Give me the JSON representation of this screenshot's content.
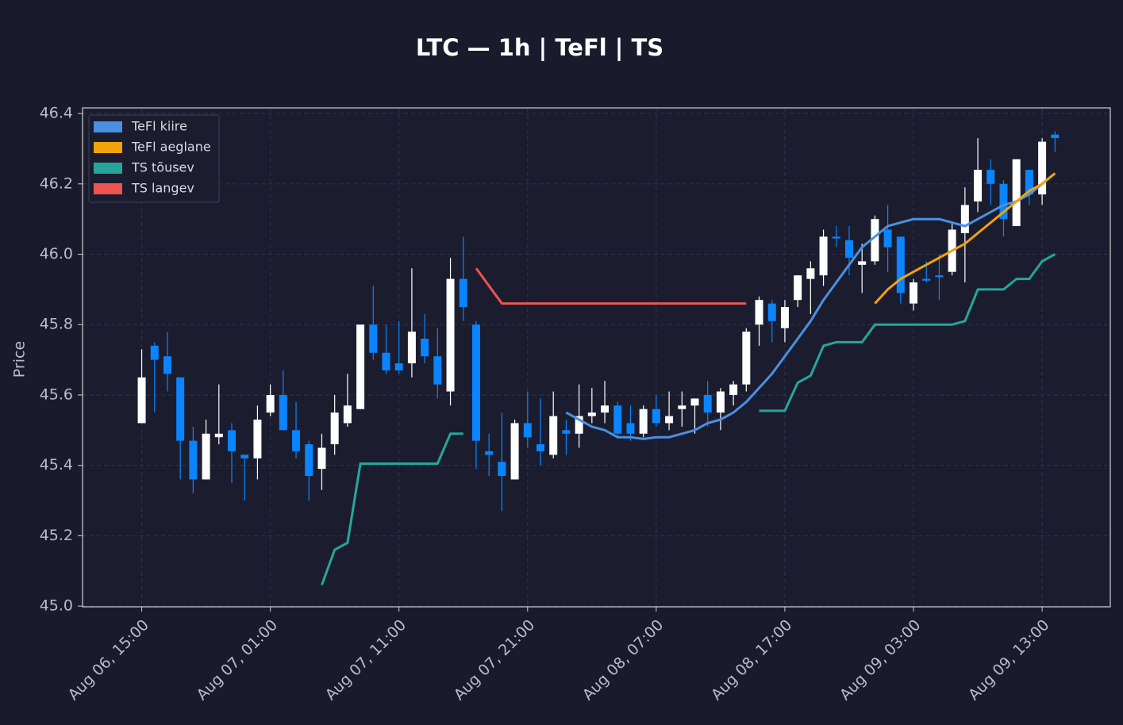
{
  "chart_data": {
    "type": "candlestick",
    "title": "LTC — 1h  |  TeFl  |  TS",
    "y_label": "Price",
    "categories": [
      "Aug 06, 15:00",
      null,
      null,
      null,
      null,
      null,
      null,
      null,
      null,
      null,
      "Aug 07, 01:00",
      null,
      null,
      null,
      null,
      null,
      null,
      null,
      null,
      null,
      "Aug 07, 11:00",
      null,
      null,
      null,
      null,
      null,
      null,
      null,
      null,
      null,
      "Aug 07, 21:00",
      null,
      null,
      null,
      null,
      null,
      null,
      null,
      null,
      null,
      "Aug 08, 07:00",
      null,
      null,
      null,
      null,
      null,
      null,
      null,
      null,
      null,
      "Aug 08, 17:00",
      null,
      null,
      null,
      null,
      null,
      null,
      null,
      null,
      null,
      "Aug 09, 03:00",
      null,
      null,
      null,
      null,
      null,
      null,
      null,
      null,
      null,
      "Aug 09, 13:00",
      null
    ],
    "open": [
      45.52,
      45.74,
      45.71,
      45.65,
      45.47,
      45.36,
      45.48,
      45.5,
      45.43,
      45.42,
      45.55,
      45.6,
      45.5,
      45.46,
      45.39,
      45.46,
      45.52,
      45.56,
      45.8,
      45.72,
      45.69,
      45.69,
      45.76,
      45.71,
      45.61,
      45.93,
      45.8,
      45.44,
      45.41,
      45.36,
      45.52,
      45.46,
      45.43,
      45.5,
      45.49,
      45.54,
      45.55,
      45.57,
      45.52,
      45.49,
      45.56,
      45.52,
      45.56,
      45.57,
      45.6,
      45.55,
      45.6,
      45.63,
      45.8,
      45.86,
      45.79,
      45.87,
      45.93,
      45.94,
      46.05,
      46.04,
      45.97,
      45.98,
      46.07,
      46.05,
      45.86,
      45.93,
      45.94,
      45.95,
      46.06,
      46.15,
      46.24,
      46.2,
      46.08,
      46.24,
      46.17,
      46.34
    ],
    "close": [
      45.65,
      45.7,
      45.66,
      45.47,
      45.36,
      45.49,
      45.49,
      45.44,
      45.42,
      45.53,
      45.6,
      45.5,
      45.44,
      45.37,
      45.45,
      45.55,
      45.57,
      45.8,
      45.72,
      45.67,
      45.67,
      45.78,
      45.71,
      45.63,
      45.93,
      45.85,
      45.47,
      45.43,
      45.37,
      45.52,
      45.48,
      45.44,
      45.54,
      45.49,
      45.54,
      45.55,
      45.57,
      45.49,
      45.49,
      45.56,
      45.52,
      45.54,
      45.57,
      45.59,
      45.55,
      45.61,
      45.63,
      45.78,
      45.87,
      45.81,
      45.85,
      45.94,
      45.96,
      46.05,
      46.045,
      45.99,
      45.98,
      46.1,
      46.02,
      45.89,
      45.92,
      45.925,
      45.935,
      46.07,
      46.14,
      46.24,
      46.2,
      46.1,
      46.27,
      46.17,
      46.32,
      46.33
    ],
    "high": [
      45.73,
      45.75,
      45.78,
      45.65,
      45.51,
      45.53,
      45.63,
      45.52,
      45.43,
      45.57,
      45.63,
      45.67,
      45.58,
      45.47,
      45.49,
      45.6,
      45.66,
      45.8,
      45.91,
      45.8,
      45.81,
      45.96,
      45.83,
      45.79,
      45.99,
      46.05,
      45.81,
      45.49,
      45.55,
      45.53,
      45.61,
      45.59,
      45.61,
      45.53,
      45.63,
      45.62,
      45.64,
      45.58,
      45.57,
      45.57,
      45.6,
      45.61,
      45.61,
      45.59,
      45.64,
      45.62,
      45.64,
      45.79,
      45.88,
      45.87,
      45.87,
      45.94,
      45.98,
      46.07,
      46.08,
      46.08,
      46.03,
      46.11,
      46.14,
      46.05,
      45.93,
      45.98,
      46.0,
      46.09,
      46.19,
      46.33,
      46.27,
      46.21,
      46.27,
      46.24,
      46.33,
      46.35
    ],
    "low": [
      45.52,
      45.55,
      45.61,
      45.36,
      45.32,
      45.36,
      45.46,
      45.35,
      45.3,
      45.36,
      45.54,
      45.5,
      45.42,
      45.3,
      45.33,
      45.43,
      45.51,
      45.56,
      45.7,
      45.66,
      45.66,
      45.65,
      45.69,
      45.59,
      45.57,
      45.81,
      45.39,
      45.37,
      45.27,
      45.36,
      45.45,
      45.4,
      45.42,
      45.43,
      45.45,
      45.52,
      45.52,
      45.48,
      45.47,
      45.48,
      45.51,
      45.5,
      45.51,
      45.49,
      45.51,
      45.5,
      45.57,
      45.61,
      45.74,
      45.75,
      45.75,
      45.85,
      45.83,
      45.91,
      46.02,
      45.94,
      45.89,
      45.97,
      45.95,
      45.86,
      45.84,
      45.92,
      45.87,
      45.94,
      45.92,
      46.12,
      46.14,
      46.05,
      46.08,
      46.14,
      46.14,
      46.29
    ],
    "up_color": "#ffffff",
    "down_color": "#0a84ff",
    "series": [
      {
        "name": "TeFl kiire",
        "color": "#4a90e2",
        "values": [
          null,
          null,
          null,
          null,
          null,
          null,
          null,
          null,
          null,
          null,
          null,
          null,
          null,
          null,
          null,
          null,
          null,
          null,
          null,
          null,
          null,
          null,
          null,
          null,
          null,
          null,
          null,
          null,
          null,
          null,
          null,
          null,
          null,
          45.55,
          45.53,
          45.51,
          45.5,
          45.48,
          45.48,
          45.475,
          45.48,
          45.48,
          45.49,
          45.5,
          45.52,
          45.53,
          45.55,
          45.58,
          45.62,
          45.66,
          45.71,
          45.76,
          45.81,
          45.87,
          45.92,
          45.97,
          46.02,
          46.05,
          46.08,
          46.09,
          46.1,
          46.1,
          46.1,
          46.09,
          46.08,
          46.1,
          46.12,
          46.14,
          46.15,
          46.17,
          46.2,
          46.23
        ]
      },
      {
        "name": "TeFl aeglane",
        "color": "#f0a30a",
        "values": [
          null,
          null,
          null,
          null,
          null,
          null,
          null,
          null,
          null,
          null,
          null,
          null,
          null,
          null,
          null,
          null,
          null,
          null,
          null,
          null,
          null,
          null,
          null,
          null,
          null,
          null,
          null,
          null,
          null,
          null,
          null,
          null,
          null,
          null,
          null,
          null,
          null,
          null,
          null,
          null,
          null,
          null,
          null,
          null,
          null,
          null,
          null,
          null,
          null,
          null,
          null,
          null,
          null,
          null,
          null,
          null,
          null,
          45.86,
          45.9,
          45.93,
          45.95,
          45.97,
          45.99,
          46.01,
          46.03,
          46.06,
          46.09,
          46.12,
          46.15,
          46.18,
          46.2,
          46.23
        ]
      },
      {
        "name": "TS tõusev",
        "color": "#26a69a",
        "values": [
          null,
          null,
          null,
          null,
          null,
          null,
          null,
          null,
          null,
          null,
          null,
          null,
          null,
          null,
          45.06,
          45.16,
          45.18,
          45.405,
          45.405,
          45.405,
          45.405,
          45.405,
          45.405,
          45.405,
          45.49,
          45.49,
          null,
          null,
          null,
          null,
          null,
          null,
          null,
          null,
          null,
          null,
          null,
          null,
          null,
          null,
          null,
          null,
          null,
          null,
          null,
          null,
          null,
          null,
          45.555,
          45.555,
          45.555,
          45.635,
          45.655,
          45.74,
          45.75,
          45.75,
          45.75,
          45.8,
          45.8,
          45.8,
          45.8,
          45.8,
          45.8,
          45.8,
          45.81,
          45.9,
          45.9,
          45.9,
          45.93,
          45.93,
          45.98,
          46.0
        ]
      },
      {
        "name": "TS langev",
        "color": "#ef5350",
        "values": [
          null,
          null,
          null,
          null,
          null,
          null,
          null,
          null,
          null,
          null,
          null,
          null,
          null,
          null,
          null,
          null,
          null,
          null,
          null,
          null,
          null,
          null,
          null,
          null,
          null,
          null,
          45.96,
          45.91,
          45.86,
          45.86,
          45.86,
          45.86,
          45.86,
          45.86,
          45.86,
          45.86,
          45.86,
          45.86,
          45.86,
          45.86,
          45.86,
          45.86,
          45.86,
          45.86,
          45.86,
          45.86,
          45.86,
          45.86,
          null,
          null,
          null,
          null,
          null,
          null,
          null,
          null,
          null,
          null,
          null,
          null,
          null,
          null,
          null,
          null,
          null,
          null,
          null,
          null,
          null,
          null,
          null,
          null
        ]
      }
    ],
    "xlim": [
      -4.6,
      75.3
    ],
    "ylim": [
      44.998,
      46.416
    ],
    "yticks": [
      {
        "value": 45,
        "label": "45.0"
      },
      45.2,
      45.4,
      45.6,
      45.8,
      {
        "value": 46,
        "label": "46.0"
      },
      46.2,
      46.4
    ],
    "grid": true,
    "legend": "upper-left"
  }
}
